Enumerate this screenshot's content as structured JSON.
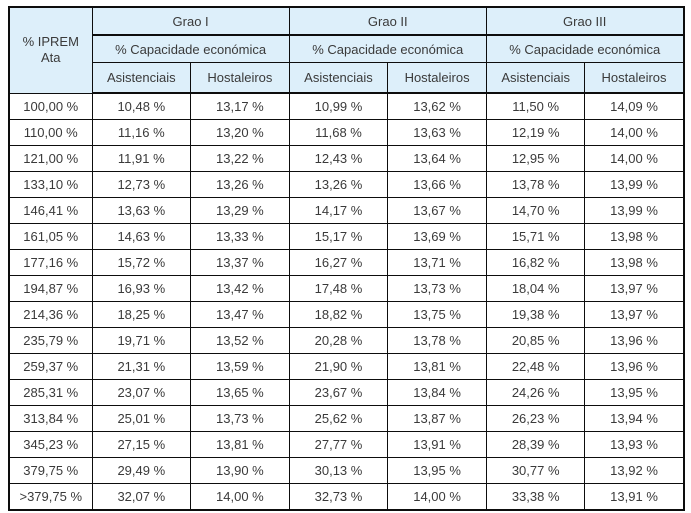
{
  "colors": {
    "header_bg": "#ddeffa",
    "border": "#0d0d0d",
    "text": "#3a3a3a",
    "row_bg": "#ffffff"
  },
  "table": {
    "iprem_header_line1": "% IPREM",
    "iprem_header_line2": "Ata",
    "groups": [
      {
        "name": "Grao I",
        "subtitle": "% Capacidade económica",
        "cols": [
          "Asistenciais",
          "Hostaleiros"
        ]
      },
      {
        "name": "Grao II",
        "subtitle": "% Capacidade económica",
        "cols": [
          "Asistenciais",
          "Hostaleiros"
        ]
      },
      {
        "name": "Grao III",
        "subtitle": "% Capacidade económica",
        "cols": [
          "Asistenciais",
          "Hostaleiros"
        ]
      }
    ],
    "rows": [
      [
        "100,00 %",
        "10,48 %",
        "13,17 %",
        "10,99 %",
        "13,62 %",
        "11,50 %",
        "14,09 %"
      ],
      [
        "110,00 %",
        "11,16 %",
        "13,20 %",
        "11,68 %",
        "13,63 %",
        "12,19 %",
        "14,00 %"
      ],
      [
        "121,00 %",
        "11,91 %",
        "13,22 %",
        "12,43 %",
        "13,64 %",
        "12,95 %",
        "14,00 %"
      ],
      [
        "133,10 %",
        "12,73 %",
        "13,26 %",
        "13,26 %",
        "13,66 %",
        "13,78 %",
        "13,99 %"
      ],
      [
        "146,41 %",
        "13,63 %",
        "13,29 %",
        "14,17 %",
        "13,67 %",
        "14,70 %",
        "13,99 %"
      ],
      [
        "161,05 %",
        "14,63 %",
        "13,33 %",
        "15,17 %",
        "13,69 %",
        "15,71 %",
        "13,98 %"
      ],
      [
        "177,16 %",
        "15,72 %",
        "13,37 %",
        "16,27 %",
        "13,71 %",
        "16,82 %",
        "13,98 %"
      ],
      [
        "194,87 %",
        "16,93 %",
        "13,42 %",
        "17,48 %",
        "13,73 %",
        "18,04 %",
        "13,97 %"
      ],
      [
        "214,36 %",
        "18,25 %",
        "13,47 %",
        "18,82 %",
        "13,75 %",
        "19,38 %",
        "13,97 %"
      ],
      [
        "235,79 %",
        "19,71 %",
        "13,52 %",
        "20,28 %",
        "13,78 %",
        "20,85 %",
        "13,96 %"
      ],
      [
        "259,37 %",
        "21,31 %",
        "13,59 %",
        "21,90 %",
        "13,81 %",
        "22,48 %",
        "13,96 %"
      ],
      [
        "285,31 %",
        "23,07 %",
        "13,65 %",
        "23,67 %",
        "13,84 %",
        "24,26 %",
        "13,95 %"
      ],
      [
        "313,84 %",
        "25,01 %",
        "13,73 %",
        "25,62 %",
        "13,87 %",
        "26,23 %",
        "13,94 %"
      ],
      [
        "345,23 %",
        "27,15 %",
        "13,81 %",
        "27,77 %",
        "13,91 %",
        "28,39 %",
        "13,93 %"
      ],
      [
        "379,75 %",
        "29,49 %",
        "13,90 %",
        "30,13 %",
        "13,95 %",
        "30,77 %",
        "13,92 %"
      ],
      [
        ">379,75 %",
        "32,07 %",
        "14,00 %",
        "32,73 %",
        "14,00 %",
        "33,38 %",
        "13,91 %"
      ]
    ]
  },
  "chart_data": {
    "type": "table",
    "title": "",
    "columns": [
      "% IPREM Ata",
      "Grao I Asistenciais",
      "Grao I Hostaleiros",
      "Grao II Asistenciais",
      "Grao II Hostaleiros",
      "Grao III Asistenciais",
      "Grao III Hostaleiros"
    ],
    "column_groups": [
      "Grao I",
      "Grao II",
      "Grao III"
    ],
    "group_subtitle": "% Capacidade económica",
    "rows": [
      [
        "100,00 %",
        "10,48 %",
        "13,17 %",
        "10,99 %",
        "13,62 %",
        "11,50 %",
        "14,09 %"
      ],
      [
        "110,00 %",
        "11,16 %",
        "13,20 %",
        "11,68 %",
        "13,63 %",
        "12,19 %",
        "14,00 %"
      ],
      [
        "121,00 %",
        "11,91 %",
        "13,22 %",
        "12,43 %",
        "13,64 %",
        "12,95 %",
        "14,00 %"
      ],
      [
        "133,10 %",
        "12,73 %",
        "13,26 %",
        "13,26 %",
        "13,66 %",
        "13,78 %",
        "13,99 %"
      ],
      [
        "146,41 %",
        "13,63 %",
        "13,29 %",
        "14,17 %",
        "13,67 %",
        "14,70 %",
        "13,99 %"
      ],
      [
        "161,05 %",
        "14,63 %",
        "13,33 %",
        "15,17 %",
        "13,69 %",
        "15,71 %",
        "13,98 %"
      ],
      [
        "177,16 %",
        "15,72 %",
        "13,37 %",
        "16,27 %",
        "13,71 %",
        "16,82 %",
        "13,98 %"
      ],
      [
        "194,87 %",
        "16,93 %",
        "13,42 %",
        "17,48 %",
        "13,73 %",
        "18,04 %",
        "13,97 %"
      ],
      [
        "214,36 %",
        "18,25 %",
        "13,47 %",
        "18,82 %",
        "13,75 %",
        "19,38 %",
        "13,97 %"
      ],
      [
        "235,79 %",
        "19,71 %",
        "13,52 %",
        "20,28 %",
        "13,78 %",
        "20,85 %",
        "13,96 %"
      ],
      [
        "259,37 %",
        "21,31 %",
        "13,59 %",
        "21,90 %",
        "13,81 %",
        "22,48 %",
        "13,96 %"
      ],
      [
        "285,31 %",
        "23,07 %",
        "13,65 %",
        "23,67 %",
        "13,84 %",
        "24,26 %",
        "13,95 %"
      ],
      [
        "313,84 %",
        "25,01 %",
        "13,73 %",
        "25,62 %",
        "13,87 %",
        "26,23 %",
        "13,94 %"
      ],
      [
        "345,23 %",
        "27,15 %",
        "13,81 %",
        "27,77 %",
        "13,91 %",
        "28,39 %",
        "13,93 %"
      ],
      [
        "379,75 %",
        "29,49 %",
        "13,90 %",
        "30,13 %",
        "13,95 %",
        "30,77 %",
        "13,92 %"
      ],
      [
        ">379,75 %",
        "32,07 %",
        "14,00 %",
        "32,73 %",
        "14,00 %",
        "33,38 %",
        "13,91 %"
      ]
    ]
  }
}
